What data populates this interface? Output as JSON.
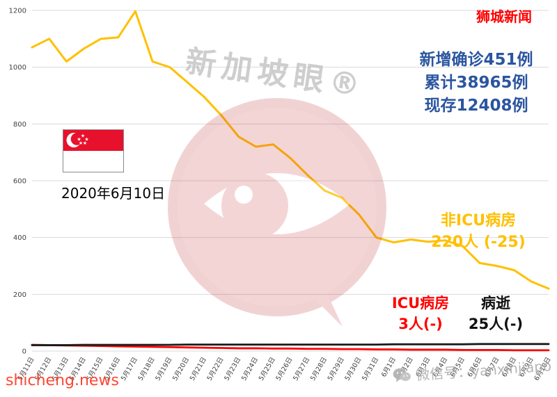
{
  "header": {
    "site_badge": "狮城新闻",
    "stats": [
      "新增确诊451例",
      "累计38965例",
      "现存12408例"
    ],
    "date": "2020年6月10日"
  },
  "annotations": {
    "non_icu_label": "非ICU病房",
    "non_icu_value": "220人 (-25)",
    "icu_label": "ICU病房",
    "icu_value": "3人(-)",
    "deaths_label": "病逝",
    "deaths_value": "25人(-)"
  },
  "watermarks": {
    "diagonal": "新加坡眼®",
    "wechat": "微信号：yanxinjiapo",
    "footer": "shicheng.news"
  },
  "colors": {
    "non_icu_line": "#FFC000",
    "icu_line": "#FF0000",
    "deaths_line": "#1a1a1a",
    "stats_blue": "#2b55a0",
    "badge_red": "#ff0000",
    "gridline": "#d9d9d9",
    "axis_text": "#404040",
    "watermark_pink": "#cc3333"
  },
  "chart_data": {
    "type": "line",
    "x": [
      "5月11日",
      "5月12日",
      "5月13日",
      "5月14日",
      "5月15日",
      "5月16日",
      "5月17日",
      "5月18日",
      "5月19日",
      "5月20日",
      "5月21日",
      "5月22日",
      "5月23日",
      "5月24日",
      "5月25日",
      "5月26日",
      "5月27日",
      "5月28日",
      "5月29日",
      "5月30日",
      "5月31日",
      "6月1日",
      "6月2日",
      "6月3日",
      "6月4日",
      "6月5日",
      "6月6日",
      "6月7日",
      "6月8日",
      "6月9日",
      "6月10日"
    ],
    "series": [
      {
        "name": "非ICU病房",
        "color": "#FFC000",
        "width": 3,
        "values": [
          1070,
          1100,
          1020,
          1065,
          1100,
          1105,
          1197,
          1020,
          1000,
          948,
          895,
          830,
          755,
          720,
          728,
          680,
          620,
          565,
          540,
          480,
          400,
          383,
          393,
          385,
          390,
          370,
          310,
          300,
          285,
          245,
          220
        ]
      },
      {
        "name": "ICU病房",
        "color": "#FF0000",
        "width": 2.8,
        "values": [
          22,
          21,
          20,
          19,
          18,
          17,
          16,
          15,
          14,
          13,
          12,
          11,
          10,
          10,
          9,
          9,
          8,
          8,
          7,
          7,
          6,
          6,
          5,
          5,
          5,
          4,
          4,
          4,
          3,
          3,
          3
        ]
      },
      {
        "name": "病逝",
        "color": "#1a1a1a",
        "width": 2.8,
        "values": [
          21,
          21,
          21,
          22,
          22,
          22,
          22,
          22,
          22,
          23,
          23,
          23,
          23,
          23,
          23,
          23,
          23,
          23,
          23,
          23,
          23,
          24,
          24,
          24,
          24,
          24,
          25,
          25,
          25,
          25,
          25
        ]
      }
    ],
    "title": "",
    "xlabel": "",
    "ylabel": "",
    "ylim": [
      0,
      1200
    ],
    "yticks": [
      0,
      200,
      400,
      600,
      800,
      1000,
      1200
    ],
    "grid": true,
    "legend_position": "inline-annotations"
  }
}
